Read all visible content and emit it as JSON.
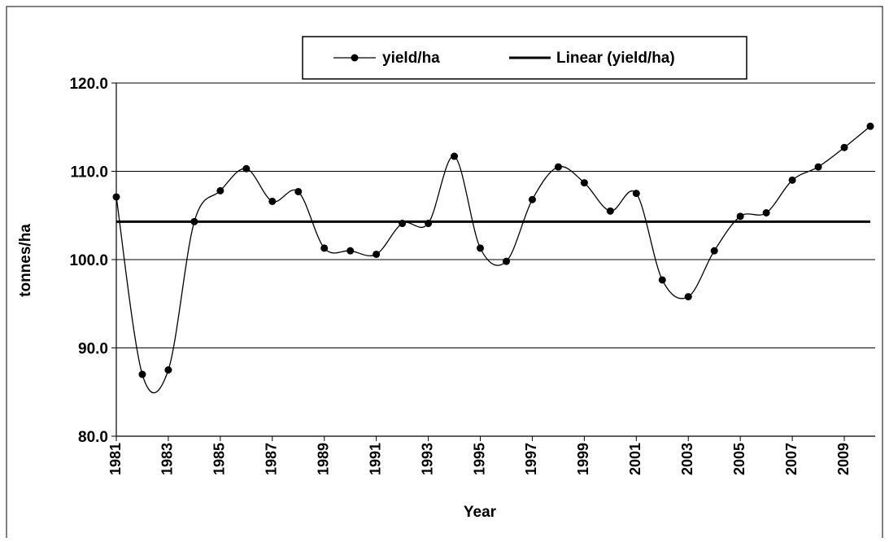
{
  "chart_data": {
    "type": "line",
    "x_label": "Year",
    "y_label": "tonnes/ha",
    "x": [
      1981,
      1982,
      1983,
      1984,
      1985,
      1986,
      1987,
      1988,
      1989,
      1990,
      1991,
      1992,
      1993,
      1994,
      1995,
      1996,
      1997,
      1998,
      1999,
      2000,
      2001,
      2002,
      2003,
      2004,
      2005,
      2006,
      2007,
      2008,
      2009,
      2010
    ],
    "series": [
      {
        "name": "yield/ha",
        "color": "#000000",
        "values": [
          107.1,
          87.0,
          87.5,
          104.3,
          107.8,
          110.3,
          106.6,
          107.7,
          101.3,
          101.0,
          100.6,
          104.1,
          104.1,
          111.7,
          101.3,
          99.8,
          106.8,
          110.5,
          108.7,
          105.5,
          107.5,
          97.7,
          95.8,
          101.0,
          104.9,
          105.3,
          109.0,
          110.5,
          112.7,
          115.1
        ]
      }
    ],
    "trendline": {
      "name": "Linear (yield/ha)",
      "color": "#000000",
      "x": [
        1981,
        2010
      ],
      "values": [
        104.3,
        104.3
      ]
    },
    "xlim": [
      1981,
      2010
    ],
    "xticks": [
      1981,
      1983,
      1985,
      1987,
      1989,
      1991,
      1993,
      1995,
      1997,
      1999,
      2001,
      2003,
      2005,
      2007,
      2009
    ],
    "ylim": [
      80,
      120
    ],
    "yticks": [
      {
        "value": 80,
        "label": "80.0"
      },
      {
        "value": 90,
        "label": "90.0"
      },
      {
        "value": 100,
        "label": "100.0"
      },
      {
        "value": 110,
        "label": "110.0"
      },
      {
        "value": 120,
        "label": "120.0"
      }
    ],
    "grid": true,
    "legend": "top"
  }
}
